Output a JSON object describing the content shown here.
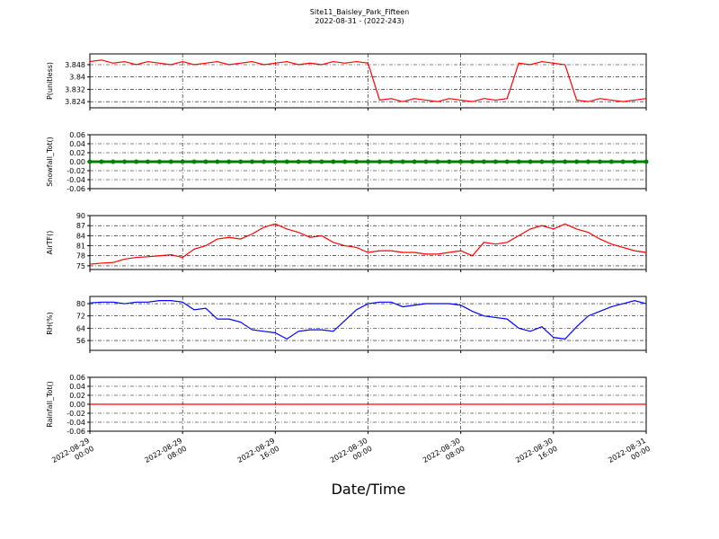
{
  "title": "Site11_Baisley_Park_Fifteen",
  "subtitle": "2022-08-31 - (2022-243)",
  "xlabel": "Date/Time",
  "x": [
    "2022-08-29 00:00",
    "2022-08-29 01:00",
    "2022-08-29 02:00",
    "2022-08-29 03:00",
    "2022-08-29 04:00",
    "2022-08-29 05:00",
    "2022-08-29 06:00",
    "2022-08-29 07:00",
    "2022-08-29 08:00",
    "2022-08-29 09:00",
    "2022-08-29 10:00",
    "2022-08-29 11:00",
    "2022-08-29 12:00",
    "2022-08-29 13:00",
    "2022-08-29 14:00",
    "2022-08-29 15:00",
    "2022-08-29 16:00",
    "2022-08-29 17:00",
    "2022-08-29 18:00",
    "2022-08-29 19:00",
    "2022-08-29 20:00",
    "2022-08-29 21:00",
    "2022-08-29 22:00",
    "2022-08-29 23:00",
    "2022-08-30 00:00",
    "2022-08-30 01:00",
    "2022-08-30 02:00",
    "2022-08-30 03:00",
    "2022-08-30 04:00",
    "2022-08-30 05:00",
    "2022-08-30 06:00",
    "2022-08-30 07:00",
    "2022-08-30 08:00",
    "2022-08-30 09:00",
    "2022-08-30 10:00",
    "2022-08-30 11:00",
    "2022-08-30 12:00",
    "2022-08-30 13:00",
    "2022-08-30 14:00",
    "2022-08-30 15:00",
    "2022-08-30 16:00",
    "2022-08-30 17:00",
    "2022-08-30 18:00",
    "2022-08-30 19:00",
    "2022-08-30 20:00",
    "2022-08-30 21:00",
    "2022-08-30 22:00",
    "2022-08-30 23:00",
    "2022-08-31 00:00"
  ],
  "xlim": [
    "2022-08-29 00:00",
    "2022-08-31 00:00"
  ],
  "xticks": [
    "2022-08-29 00:00",
    "2022-08-29 08:00",
    "2022-08-29 16:00",
    "2022-08-30 00:00",
    "2022-08-30 08:00",
    "2022-08-30 16:00",
    "2022-08-31 00:00"
  ],
  "grid": true,
  "chart_data": [
    {
      "type": "line",
      "ylabel": "P(unitless)",
      "ylim": [
        3.82,
        3.855
      ],
      "yticks": [
        3.824,
        3.832,
        3.84,
        3.848
      ],
      "series": [
        {
          "color": "#ff0000",
          "values": [
            3.85,
            3.851,
            3.849,
            3.85,
            3.848,
            3.85,
            3.849,
            3.848,
            3.85,
            3.848,
            3.849,
            3.85,
            3.848,
            3.849,
            3.85,
            3.848,
            3.849,
            3.85,
            3.848,
            3.849,
            3.848,
            3.85,
            3.849,
            3.85,
            3.849,
            3.825,
            3.826,
            3.824,
            3.826,
            3.825,
            3.824,
            3.826,
            3.825,
            3.824,
            3.826,
            3.825,
            3.826,
            3.849,
            3.848,
            3.85,
            3.849,
            3.848,
            3.825,
            3.824,
            3.826,
            3.825,
            3.824,
            3.825,
            3.826
          ]
        }
      ]
    },
    {
      "type": "line",
      "ylabel": "Snowfall_Tot()",
      "ylim": [
        -0.06,
        0.06
      ],
      "yticks": [
        -0.06,
        -0.04,
        -0.02,
        {
          "value": 0,
          "label": "0.00"
        },
        0.02,
        0.04,
        0.06
      ],
      "markers": true,
      "series": [
        {
          "color": "#008000",
          "values": [
            0,
            0,
            0,
            0,
            0,
            0,
            0,
            0,
            0,
            0,
            0,
            0,
            0,
            0,
            0,
            0,
            0,
            0,
            0,
            0,
            0,
            0,
            0,
            0,
            0,
            0,
            0,
            0,
            0,
            0,
            0,
            0,
            0,
            0,
            0,
            0,
            0,
            0,
            0,
            0,
            0,
            0,
            0,
            0,
            0,
            0,
            0,
            0,
            0
          ]
        }
      ]
    },
    {
      "type": "line",
      "ylabel": "AirTF()",
      "ylim": [
        73.9,
        90
      ],
      "yticks": [
        75,
        78,
        81,
        84,
        87,
        90
      ],
      "series": [
        {
          "color": "#ff0000",
          "values": [
            75.5,
            75.8,
            76,
            77,
            77.5,
            77.7,
            78,
            78.3,
            77.5,
            80,
            81,
            83,
            83.5,
            83,
            84.5,
            86.5,
            87.5,
            86,
            85,
            83.5,
            84,
            82,
            81,
            80.5,
            79,
            79.5,
            79.5,
            79,
            79,
            78.5,
            78.5,
            79,
            79.5,
            78,
            82,
            81.5,
            82,
            84,
            86,
            87,
            86,
            87.5,
            86,
            85,
            83,
            81.5,
            80.5,
            79.5,
            79
          ]
        }
      ]
    },
    {
      "type": "line",
      "ylabel": "RH(%)",
      "ylim": [
        49.6,
        84.7
      ],
      "yticks": [
        56,
        64,
        72,
        80
      ],
      "series": [
        {
          "color": "#0000ff",
          "values": [
            80.5,
            81,
            81,
            80,
            81,
            81,
            82,
            82,
            81,
            76,
            77,
            70,
            70,
            68,
            63,
            62,
            61,
            57,
            62,
            63,
            63,
            62,
            69,
            76,
            80,
            81,
            81,
            78,
            79,
            80,
            80,
            80,
            79,
            75,
            72,
            71,
            70,
            64,
            62,
            65,
            58,
            57,
            65,
            72,
            75,
            78,
            80,
            82,
            80
          ]
        }
      ]
    },
    {
      "type": "line",
      "ylabel": "Rainfall_Tot()",
      "ylim": [
        -0.06,
        0.06
      ],
      "yticks": [
        -0.06,
        -0.04,
        -0.02,
        {
          "value": 0,
          "label": "0.00"
        },
        0.02,
        0.04,
        0.06
      ],
      "series": [
        {
          "color": "#ff0000",
          "values": [
            0,
            0,
            0,
            0,
            0,
            0,
            0,
            0,
            0,
            0,
            0,
            0,
            0,
            0,
            0,
            0,
            0,
            0,
            0,
            0,
            0,
            0,
            0,
            0,
            0,
            0,
            0,
            0,
            0,
            0,
            0,
            0,
            0,
            0,
            0,
            0,
            0,
            0,
            0,
            0,
            0,
            0,
            0,
            0,
            0,
            0,
            0,
            0,
            0
          ]
        }
      ]
    }
  ]
}
